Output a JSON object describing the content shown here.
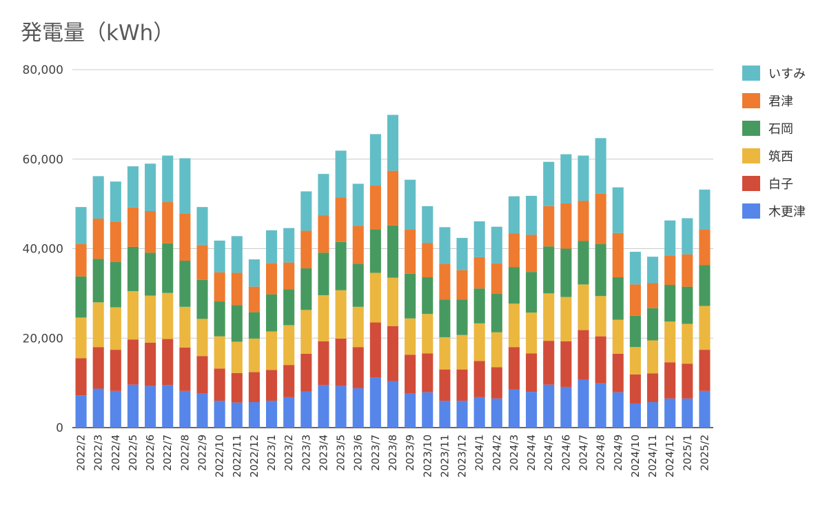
{
  "chart_data": {
    "type": "bar",
    "stacked": true,
    "title": "発電量（kWh）",
    "xlabel": "",
    "ylabel": "",
    "ylim": [
      0,
      80000
    ],
    "yticks": [
      0,
      20000,
      40000,
      60000,
      80000
    ],
    "ytick_labels": [
      "0",
      "20,000",
      "40,000",
      "60,000",
      "80,000"
    ],
    "grid": true,
    "legend_position": "right",
    "categories": [
      "2022/2",
      "2022/3",
      "2022/4",
      "2022/5",
      "2022/6",
      "2022/7",
      "2022/8",
      "2022/9",
      "2022/10",
      "2022/11",
      "2022/12",
      "2023/1",
      "2023/2",
      "2023/3",
      "2023/4",
      "2023/5",
      "2023/6",
      "2023/7",
      "2023/8",
      "2023/9",
      "2023/10",
      "2023/11",
      "2023/12",
      "2024/1",
      "2024/2",
      "2024/3",
      "2024/4",
      "2024/5",
      "2024/6",
      "2024/7",
      "2024/8",
      "2024/9",
      "2024/10",
      "2024/11",
      "2024/12",
      "2025/1",
      "2025/2"
    ],
    "series": [
      {
        "name": "木更津",
        "color": "#5686E9",
        "values": [
          7200,
          8700,
          8200,
          9600,
          9300,
          9500,
          8200,
          7600,
          6000,
          5600,
          5700,
          6000,
          6800,
          8100,
          9500,
          9300,
          8800,
          11200,
          10400,
          7600,
          7900,
          6000,
          6000,
          6800,
          6500,
          8500,
          8000,
          9600,
          9100,
          10700,
          9900,
          7900,
          5400,
          5700,
          6500,
          6500,
          8200
        ]
      },
      {
        "name": "白子",
        "color": "#D24C3A",
        "values": [
          8300,
          9300,
          9200,
          10100,
          9700,
          10300,
          9700,
          8400,
          7200,
          6600,
          6700,
          6900,
          7200,
          8400,
          9800,
          10600,
          9200,
          12300,
          12300,
          8700,
          8700,
          7000,
          7000,
          8100,
          7000,
          9500,
          8600,
          9800,
          10200,
          11100,
          10500,
          8600,
          6500,
          6400,
          8100,
          7800,
          9200
        ]
      },
      {
        "name": "筑西",
        "color": "#EBB73F",
        "values": [
          9100,
          10000,
          9500,
          10800,
          10500,
          10300,
          9100,
          8300,
          7200,
          7000,
          7500,
          8600,
          8900,
          9800,
          10300,
          10800,
          9000,
          11100,
          10800,
          8100,
          8800,
          7200,
          7700,
          8400,
          7800,
          9700,
          9100,
          10600,
          9900,
          10200,
          9000,
          7600,
          6100,
          7400,
          9100,
          8900,
          9800
        ]
      },
      {
        "name": "石岡",
        "color": "#479A5F",
        "values": [
          9200,
          9700,
          10100,
          9900,
          9600,
          11100,
          10300,
          8700,
          7800,
          8200,
          5900,
          8300,
          8000,
          9300,
          9500,
          10800,
          9600,
          9700,
          11700,
          10000,
          8200,
          8400,
          7900,
          7800,
          8600,
          8200,
          9100,
          10500,
          10800,
          9700,
          11600,
          9500,
          7000,
          7200,
          8200,
          8300,
          9100
        ]
      },
      {
        "name": "君津",
        "color": "#EE7B30",
        "values": [
          7200,
          9000,
          9000,
          8800,
          9300,
          9200,
          10600,
          7800,
          6500,
          7200,
          5700,
          7000,
          6000,
          8400,
          8300,
          9900,
          8500,
          9800,
          12200,
          9900,
          7700,
          8000,
          6600,
          7000,
          6800,
          7500,
          8300,
          9000,
          10100,
          9000,
          11300,
          9900,
          7000,
          5600,
          6600,
          7200,
          8000
        ]
      },
      {
        "name": "いすみ",
        "color": "#62BEC6",
        "values": [
          8300,
          9500,
          9000,
          9200,
          10600,
          10400,
          12300,
          8500,
          7100,
          8200,
          6100,
          7300,
          7700,
          8800,
          9300,
          10500,
          9400,
          11500,
          12500,
          11100,
          8200,
          8200,
          7200,
          8000,
          8200,
          8300,
          8700,
          9900,
          11000,
          10100,
          12400,
          10200,
          7300,
          5900,
          7800,
          8100,
          8900
        ]
      }
    ]
  }
}
